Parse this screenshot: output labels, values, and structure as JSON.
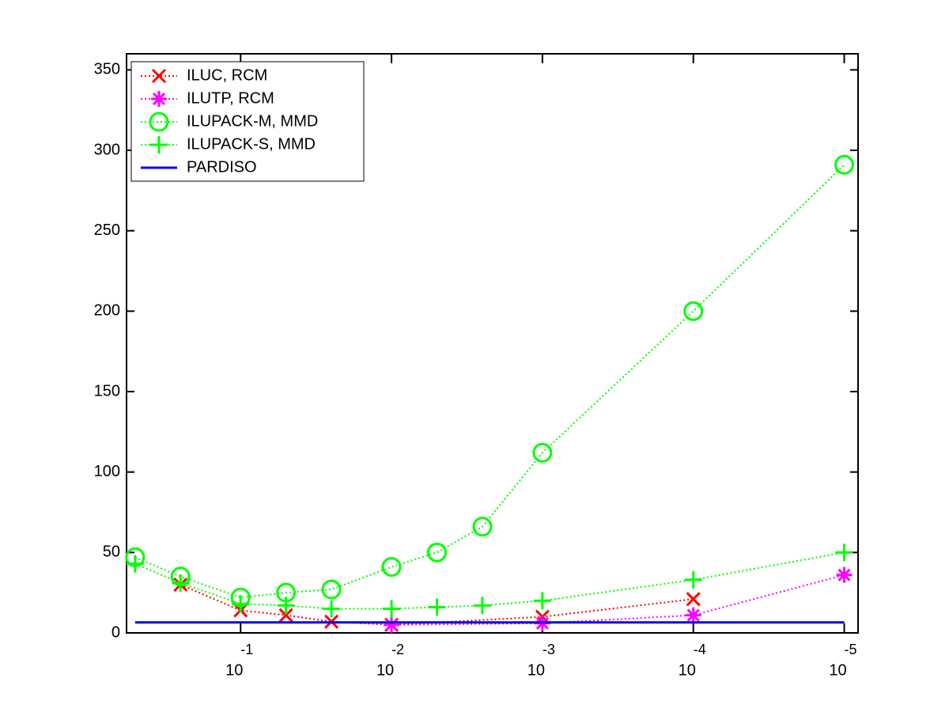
{
  "chart_data": {
    "type": "line",
    "xscale": "log",
    "xlim": [
      0.57,
      8.1e-06
    ],
    "ylim": [
      0,
      360
    ],
    "yticks": [
      0,
      50,
      100,
      150,
      200,
      250,
      300,
      350
    ],
    "xticks": [
      {
        "value": 0.1,
        "label": "10",
        "exponent": "-1"
      },
      {
        "value": 0.01,
        "label": "10",
        "exponent": "-2"
      },
      {
        "value": 0.001,
        "label": "10",
        "exponent": "-3"
      },
      {
        "value": 0.0001,
        "label": "10",
        "exponent": "-4"
      },
      {
        "value": 1e-05,
        "label": "10",
        "exponent": "-5"
      }
    ],
    "legend": "upper left",
    "series": [
      {
        "name": "ILUC, RCM",
        "color": "#ff0000",
        "marker": "x",
        "line": "dotted",
        "x": [
          0.25,
          0.1,
          0.05,
          0.025,
          0.01,
          0.001,
          0.0001
        ],
        "values": [
          30,
          14,
          11,
          7,
          5,
          10,
          21
        ]
      },
      {
        "name": "ILUTP, RCM",
        "color": "#ff00ff",
        "marker": "*",
        "line": "dotted",
        "x": [
          0.01,
          0.001,
          0.0001,
          1e-05
        ],
        "values": [
          5,
          6,
          11,
          36
        ]
      },
      {
        "name": "ILUPACK-M, MMD",
        "color": "#00ff00",
        "marker": "o",
        "line": "dotted",
        "x": [
          0.5,
          0.25,
          0.1,
          0.05,
          0.025,
          0.01,
          0.005,
          0.0025,
          0.001,
          0.0001,
          1e-05
        ],
        "values": [
          47,
          35,
          22,
          25,
          27,
          41,
          50,
          66,
          112,
          200,
          291
        ]
      },
      {
        "name": "ILUPACK-S, MMD",
        "color": "#00ff00",
        "marker": "+",
        "line": "dotted",
        "x": [
          0.5,
          0.25,
          0.1,
          0.05,
          0.025,
          0.01,
          0.005,
          0.0025,
          0.001,
          0.0001,
          1e-05
        ],
        "values": [
          43,
          31,
          18,
          17,
          15,
          15,
          16,
          17,
          20,
          33,
          50
        ]
      },
      {
        "name": "PARDISO",
        "color": "#0000ff",
        "marker": "none",
        "line": "solid",
        "x": [
          0.5,
          1e-05
        ],
        "values": [
          6.5,
          6.5
        ]
      }
    ]
  }
}
